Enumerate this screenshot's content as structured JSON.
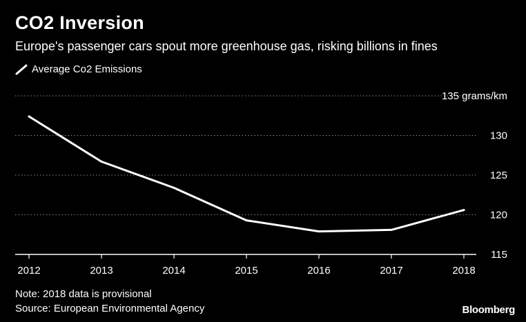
{
  "header": {
    "title": "CO2 Inversion",
    "subtitle": "Europe's passenger cars spout more greenhouse gas, risking billions in fines"
  },
  "legend": {
    "label": "Average Co2 Emissions"
  },
  "footer": {
    "note": "Note: 2018 data is provisional",
    "source": "Source: European Environmental Agency",
    "brand": "Bloomberg"
  },
  "colors": {
    "background": "#000000",
    "line": "#ffffff",
    "grid": "#8c8c8c"
  },
  "chart_data": {
    "type": "line",
    "title": "CO2 Inversion",
    "subtitle": "Europe's passenger cars spout more greenhouse gas, risking billions in fines",
    "x": [
      "2012",
      "2013",
      "2014",
      "2015",
      "2016",
      "2017",
      "2018"
    ],
    "series": [
      {
        "name": "Average Co2 Emissions",
        "values": [
          132.4,
          126.7,
          123.4,
          119.3,
          117.9,
          118.1,
          120.6
        ]
      }
    ],
    "yticks": [
      115,
      120,
      125,
      130,
      135
    ],
    "ytick_labels": [
      "115",
      "120",
      "125",
      "130",
      "135 grams/km"
    ],
    "ylim": [
      115,
      135
    ],
    "grid": true,
    "grid_style": "dotted",
    "legend_position": "top-left",
    "y_axis_side": "right"
  }
}
